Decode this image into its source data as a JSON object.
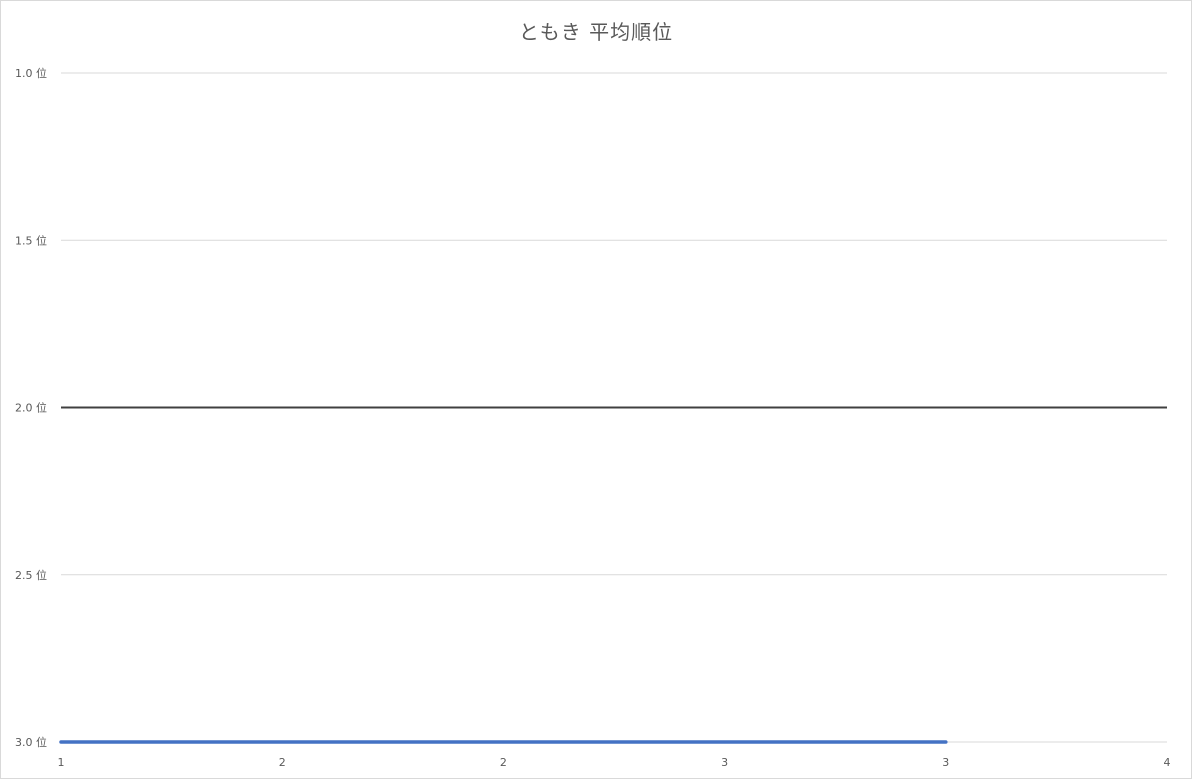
{
  "chart_data": {
    "type": "line",
    "title": "ともき 平均順位",
    "xlabel": "",
    "ylabel": "",
    "y_axis_reversed": true,
    "ylim": [
      1.0,
      3.0
    ],
    "y_ticks": [
      1.0,
      1.5,
      2.0,
      2.5,
      3.0
    ],
    "y_tick_labels": [
      "1.0 位",
      "1.5 位",
      "2.0 位",
      "2.5 位",
      "3.0 位"
    ],
    "x_tick_labels": [
      "1",
      "2",
      "2",
      "3",
      "3",
      "4"
    ],
    "grid": true,
    "legend": "none",
    "reference_line": {
      "y": 2.0,
      "color": "#404040"
    },
    "series": [
      {
        "color": "#4472c4",
        "x_index": [
          0,
          1,
          2,
          3,
          4
        ],
        "values": [
          3.0,
          3.0,
          3.0,
          3.0,
          3.0
        ]
      }
    ]
  }
}
